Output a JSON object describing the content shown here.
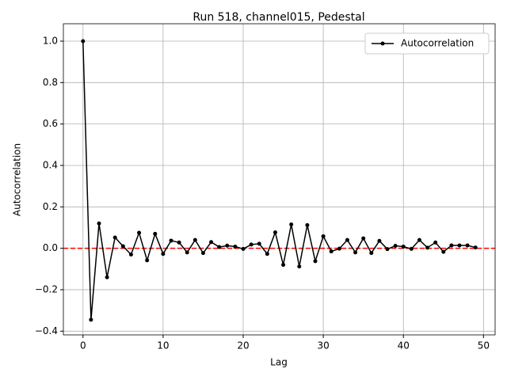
{
  "chart_data": {
    "type": "line",
    "title": "Run 518, channel015, Pedestal",
    "xlabel": "Lag",
    "ylabel": "Autocorrelation",
    "x": [
      0,
      1,
      2,
      3,
      4,
      5,
      6,
      7,
      8,
      9,
      10,
      11,
      12,
      13,
      14,
      15,
      16,
      17,
      18,
      19,
      20,
      21,
      22,
      23,
      24,
      25,
      26,
      27,
      28,
      29,
      30,
      31,
      32,
      33,
      34,
      35,
      36,
      37,
      38,
      39,
      40,
      41,
      42,
      43,
      44,
      45,
      46,
      47,
      48,
      49
    ],
    "series": [
      {
        "name": "Autocorrelation",
        "color": "#000000",
        "values": [
          1.0,
          -0.345,
          0.12,
          -0.14,
          0.052,
          0.01,
          -0.03,
          0.075,
          -0.058,
          0.07,
          -0.027,
          0.037,
          0.028,
          -0.02,
          0.04,
          -0.023,
          0.03,
          0.006,
          0.013,
          0.008,
          -0.003,
          0.018,
          0.022,
          -0.027,
          0.077,
          -0.08,
          0.115,
          -0.088,
          0.112,
          -0.062,
          0.058,
          -0.015,
          -0.002,
          0.04,
          -0.02,
          0.048,
          -0.023,
          0.036,
          -0.004,
          0.012,
          0.008,
          -0.003,
          0.04,
          0.003,
          0.028,
          -0.017,
          0.014,
          0.014,
          0.014,
          0.004
        ]
      }
    ],
    "hline": {
      "value": 0,
      "color": "#ff0000"
    },
    "xlim": [
      -2.45,
      51.45
    ],
    "ylim": [
      -0.418,
      1.084
    ],
    "xticks": [
      0,
      10,
      20,
      30,
      40,
      50
    ],
    "yticks": [
      {
        "value": -0.4,
        "label": "−0.4"
      },
      {
        "value": -0.2,
        "label": "−0.2"
      },
      {
        "value": 0,
        "label": "0.0"
      },
      {
        "value": 0.2,
        "label": "0.2"
      },
      {
        "value": 0.4,
        "label": "0.4"
      },
      {
        "value": 0.6,
        "label": "0.6"
      },
      {
        "value": 0.8,
        "label": "0.8"
      },
      {
        "value": 1.0,
        "label": "1.0"
      }
    ],
    "grid": true,
    "legend": "upper-right"
  }
}
